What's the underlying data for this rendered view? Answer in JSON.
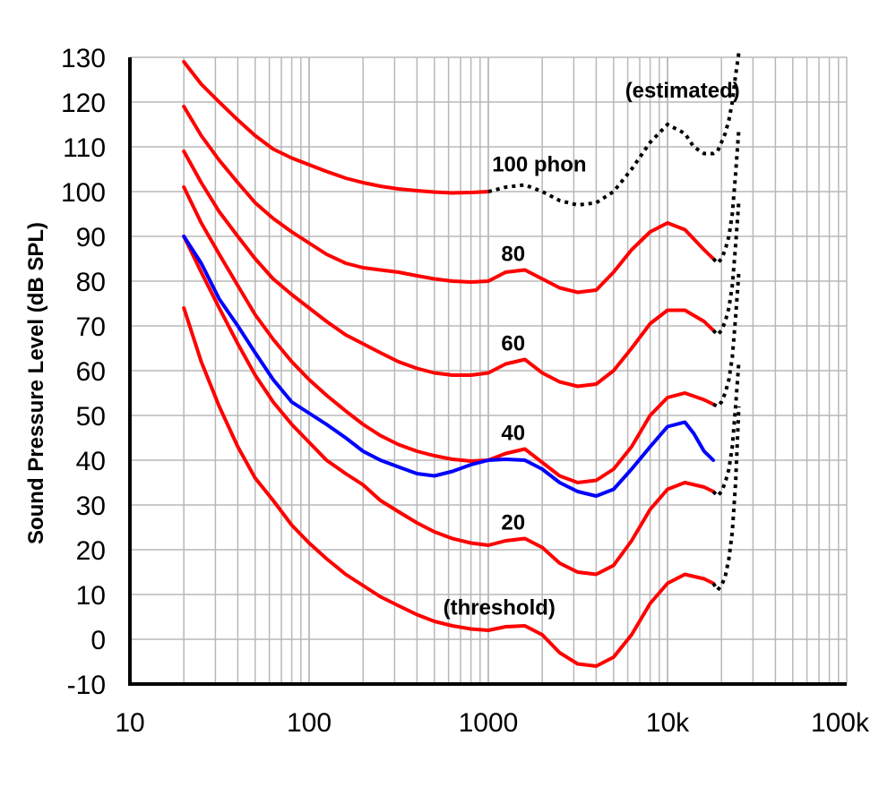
{
  "chart_data": {
    "type": "line",
    "title": "",
    "xlabel": "",
    "ylabel": "Sound Pressure Level (dB SPL)",
    "x_scale": "log",
    "xlim": [
      10,
      100000
    ],
    "ylim": [
      -10,
      130
    ],
    "grid": true,
    "x_tick_labels": [
      {
        "value": 10,
        "label": "10"
      },
      {
        "value": 100,
        "label": "100"
      },
      {
        "value": 1000,
        "label": "1000"
      },
      {
        "value": 10000,
        "label": "10k"
      },
      {
        "value": 100000,
        "label": "100k"
      }
    ],
    "y_ticks": [
      -10,
      0,
      10,
      20,
      30,
      40,
      50,
      60,
      70,
      80,
      90,
      100,
      110,
      120,
      130
    ],
    "colors": {
      "measured": "#ff0000",
      "reference": "#0000ff",
      "estimated": "#000000"
    },
    "series": [
      {
        "name": "(threshold)",
        "style": "red",
        "points": [
          [
            20,
            74
          ],
          [
            25,
            62
          ],
          [
            31.5,
            52
          ],
          [
            40,
            43
          ],
          [
            50,
            36
          ],
          [
            63,
            31
          ],
          [
            80,
            25.5
          ],
          [
            100,
            21.5
          ],
          [
            125,
            18
          ],
          [
            160,
            14.5
          ],
          [
            200,
            12
          ],
          [
            250,
            9.5
          ],
          [
            315,
            7.5
          ],
          [
            400,
            5.5
          ],
          [
            500,
            4
          ],
          [
            630,
            3
          ],
          [
            800,
            2.3
          ],
          [
            1000,
            2
          ],
          [
            1250,
            2.8
          ],
          [
            1600,
            3
          ],
          [
            2000,
            1
          ],
          [
            2500,
            -3
          ],
          [
            3150,
            -5.5
          ],
          [
            4000,
            -6
          ],
          [
            5000,
            -4
          ],
          [
            6300,
            1
          ],
          [
            8000,
            8
          ],
          [
            10000,
            12.5
          ],
          [
            12500,
            14.5
          ],
          [
            16000,
            13.5
          ],
          [
            18000,
            12.5
          ]
        ],
        "estimated_tail": [
          [
            18000,
            12.5
          ],
          [
            19000,
            11
          ],
          [
            20000,
            12
          ],
          [
            21000,
            14
          ],
          [
            22000,
            18
          ],
          [
            23000,
            24
          ],
          [
            24000,
            35
          ],
          [
            25000,
            52
          ]
        ]
      },
      {
        "name": "20",
        "style": "red",
        "points": [
          [
            20,
            90
          ],
          [
            25,
            82
          ],
          [
            31.5,
            74
          ],
          [
            40,
            66
          ],
          [
            50,
            59
          ],
          [
            63,
            53
          ],
          [
            80,
            48
          ],
          [
            100,
            44
          ],
          [
            125,
            40
          ],
          [
            160,
            37
          ],
          [
            200,
            34.5
          ],
          [
            250,
            31
          ],
          [
            315,
            28.5
          ],
          [
            400,
            26
          ],
          [
            500,
            24
          ],
          [
            630,
            22.5
          ],
          [
            800,
            21.5
          ],
          [
            1000,
            21
          ],
          [
            1250,
            22
          ],
          [
            1600,
            22.5
          ],
          [
            2000,
            20.5
          ],
          [
            2500,
            17
          ],
          [
            3150,
            15
          ],
          [
            4000,
            14.5
          ],
          [
            5000,
            16.5
          ],
          [
            6300,
            22
          ],
          [
            8000,
            29
          ],
          [
            10000,
            33.5
          ],
          [
            12500,
            35
          ],
          [
            16000,
            34
          ],
          [
            18000,
            33
          ]
        ],
        "estimated_tail": [
          [
            18000,
            33
          ],
          [
            19000,
            32
          ],
          [
            20000,
            33
          ],
          [
            21000,
            35
          ],
          [
            22000,
            38
          ],
          [
            23000,
            43
          ],
          [
            24000,
            52
          ],
          [
            25000,
            62
          ]
        ]
      },
      {
        "name": "40",
        "style": "red",
        "points": [
          [
            20,
            101
          ],
          [
            25,
            93
          ],
          [
            31.5,
            86
          ],
          [
            40,
            79
          ],
          [
            50,
            72.5
          ],
          [
            63,
            67
          ],
          [
            80,
            62
          ],
          [
            100,
            58
          ],
          [
            125,
            54.5
          ],
          [
            160,
            51
          ],
          [
            200,
            48
          ],
          [
            250,
            45.5
          ],
          [
            315,
            43.5
          ],
          [
            400,
            42
          ],
          [
            500,
            41
          ],
          [
            630,
            40.2
          ],
          [
            800,
            39.8
          ],
          [
            1000,
            40
          ],
          [
            1250,
            41.5
          ],
          [
            1600,
            42.5
          ],
          [
            2000,
            39.5
          ],
          [
            2500,
            36.5
          ],
          [
            3150,
            35
          ],
          [
            4000,
            35.5
          ],
          [
            5000,
            38
          ],
          [
            6300,
            43
          ],
          [
            8000,
            50
          ],
          [
            10000,
            54
          ],
          [
            12500,
            55
          ],
          [
            16000,
            53.5
          ],
          [
            18000,
            52.5
          ]
        ],
        "estimated_tail": [
          [
            18000,
            52.5
          ],
          [
            19000,
            52
          ],
          [
            20000,
            53
          ],
          [
            21000,
            55
          ],
          [
            22000,
            58
          ],
          [
            23000,
            63
          ],
          [
            24000,
            72
          ],
          [
            25000,
            82
          ]
        ]
      },
      {
        "name": "60",
        "style": "red",
        "points": [
          [
            20,
            109
          ],
          [
            25,
            102
          ],
          [
            31.5,
            95.5
          ],
          [
            40,
            90
          ],
          [
            50,
            85
          ],
          [
            63,
            80.5
          ],
          [
            80,
            77
          ],
          [
            100,
            74
          ],
          [
            125,
            71
          ],
          [
            160,
            68
          ],
          [
            200,
            66
          ],
          [
            250,
            64
          ],
          [
            315,
            62
          ],
          [
            400,
            60.5
          ],
          [
            500,
            59.5
          ],
          [
            630,
            59
          ],
          [
            800,
            59
          ],
          [
            1000,
            59.5
          ],
          [
            1250,
            61.5
          ],
          [
            1600,
            62.5
          ],
          [
            2000,
            59.5
          ],
          [
            2500,
            57.5
          ],
          [
            3150,
            56.5
          ],
          [
            4000,
            57
          ],
          [
            5000,
            60
          ],
          [
            6300,
            65
          ],
          [
            8000,
            70.5
          ],
          [
            10000,
            73.5
          ],
          [
            12500,
            73.5
          ],
          [
            16000,
            71
          ],
          [
            18000,
            69
          ]
        ],
        "estimated_tail": [
          [
            18000,
            69
          ],
          [
            19000,
            68
          ],
          [
            20000,
            69
          ],
          [
            21000,
            71
          ],
          [
            22000,
            74
          ],
          [
            23000,
            79
          ],
          [
            24000,
            88
          ],
          [
            25000,
            98
          ]
        ]
      },
      {
        "name": "80",
        "style": "red",
        "points": [
          [
            20,
            119
          ],
          [
            25,
            112.5
          ],
          [
            31.5,
            107
          ],
          [
            40,
            102
          ],
          [
            50,
            97.5
          ],
          [
            63,
            94
          ],
          [
            80,
            91
          ],
          [
            100,
            88.5
          ],
          [
            125,
            86
          ],
          [
            160,
            84
          ],
          [
            200,
            83
          ],
          [
            250,
            82.5
          ],
          [
            315,
            82
          ],
          [
            400,
            81.2
          ],
          [
            500,
            80.5
          ],
          [
            630,
            80
          ],
          [
            800,
            79.8
          ],
          [
            1000,
            80
          ],
          [
            1250,
            82
          ],
          [
            1600,
            82.5
          ],
          [
            2000,
            80.5
          ],
          [
            2500,
            78.5
          ],
          [
            3150,
            77.5
          ],
          [
            4000,
            78
          ],
          [
            5000,
            82
          ],
          [
            6300,
            87
          ],
          [
            8000,
            91
          ],
          [
            10000,
            93
          ],
          [
            12500,
            91.5
          ],
          [
            16000,
            87
          ],
          [
            18000,
            85
          ]
        ],
        "estimated_tail": [
          [
            18000,
            85
          ],
          [
            19000,
            84
          ],
          [
            20000,
            85
          ],
          [
            21000,
            87
          ],
          [
            22000,
            90
          ],
          [
            23000,
            95
          ],
          [
            24000,
            104
          ],
          [
            25000,
            114
          ]
        ]
      },
      {
        "name": "100 phon",
        "style": "red",
        "points": [
          [
            20,
            129
          ],
          [
            25,
            124
          ],
          [
            31.5,
            120
          ],
          [
            40,
            116
          ],
          [
            50,
            112.5
          ],
          [
            63,
            109.5
          ],
          [
            80,
            107.5
          ],
          [
            100,
            106
          ],
          [
            125,
            104.5
          ],
          [
            160,
            103
          ],
          [
            200,
            102
          ],
          [
            250,
            101.2
          ],
          [
            315,
            100.6
          ],
          [
            400,
            100.2
          ],
          [
            500,
            99.9
          ],
          [
            630,
            99.7
          ],
          [
            800,
            99.8
          ],
          [
            1000,
            100
          ]
        ],
        "estimated_tail": [
          [
            1000,
            100
          ],
          [
            1250,
            101
          ],
          [
            1600,
            101.5
          ],
          [
            2000,
            100
          ],
          [
            2500,
            98
          ],
          [
            3150,
            97
          ],
          [
            4000,
            97.5
          ],
          [
            5000,
            100
          ],
          [
            6300,
            105
          ],
          [
            8000,
            111
          ],
          [
            10000,
            115
          ],
          [
            12500,
            113
          ],
          [
            14000,
            110
          ],
          [
            16000,
            108.5
          ],
          [
            18000,
            108.5
          ],
          [
            19000,
            109
          ],
          [
            20000,
            111
          ],
          [
            21000,
            113
          ],
          [
            22000,
            116
          ],
          [
            23000,
            120
          ],
          [
            24000,
            126
          ],
          [
            25000,
            131
          ]
        ]
      },
      {
        "name": "",
        "style": "blue",
        "points": [
          [
            20,
            90
          ],
          [
            25,
            84
          ],
          [
            31.5,
            76
          ],
          [
            40,
            70
          ],
          [
            50,
            64
          ],
          [
            63,
            58
          ],
          [
            80,
            53
          ],
          [
            100,
            50.5
          ],
          [
            125,
            48
          ],
          [
            160,
            45
          ],
          [
            200,
            42
          ],
          [
            250,
            40
          ],
          [
            315,
            38.5
          ],
          [
            400,
            37
          ],
          [
            500,
            36.5
          ],
          [
            630,
            37.5
          ],
          [
            800,
            39
          ],
          [
            1000,
            40
          ],
          [
            1250,
            40.2
          ],
          [
            1600,
            40
          ],
          [
            2000,
            38
          ],
          [
            2500,
            35
          ],
          [
            3150,
            33
          ],
          [
            4000,
            32
          ],
          [
            5000,
            33.5
          ],
          [
            6300,
            38
          ],
          [
            8000,
            43
          ],
          [
            10000,
            47.5
          ],
          [
            12500,
            48.5
          ],
          [
            14000,
            46
          ],
          [
            16000,
            42
          ],
          [
            18000,
            40
          ]
        ]
      }
    ],
    "annotations": [
      {
        "text": "(estimated)",
        "x": 5800,
        "y": 121
      },
      {
        "text": "100 phon",
        "x": 1050,
        "y": 104.5
      },
      {
        "text": "80",
        "x": 1180,
        "y": 84.5
      },
      {
        "text": "60",
        "x": 1180,
        "y": 64.5
      },
      {
        "text": "40",
        "x": 1180,
        "y": 44.5
      },
      {
        "text": "20",
        "x": 1180,
        "y": 24.5
      },
      {
        "text": "(threshold)",
        "x": 560,
        "y": 5.5
      }
    ]
  }
}
